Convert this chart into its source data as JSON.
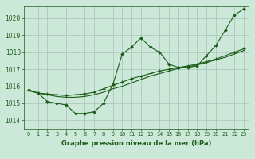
{
  "bg_color": "#cce8d8",
  "grid_color": "#aabfb5",
  "line_color": "#1a5c1a",
  "xlabel": "Graphe pression niveau de la mer (hPa)",
  "ylim": [
    1013.5,
    1020.7
  ],
  "xlim": [
    -0.5,
    23.5
  ],
  "yticks": [
    1014,
    1015,
    1016,
    1017,
    1018,
    1019,
    1020
  ],
  "xticks": [
    0,
    1,
    2,
    3,
    4,
    5,
    6,
    7,
    8,
    9,
    10,
    11,
    12,
    13,
    14,
    15,
    16,
    17,
    18,
    19,
    20,
    21,
    22,
    23
  ],
  "series1_y": [
    1015.8,
    1015.6,
    1015.1,
    1015.0,
    1014.9,
    1014.4,
    1014.4,
    1014.5,
    1015.0,
    1016.1,
    1017.9,
    1018.3,
    1018.85,
    1018.3,
    1018.0,
    1017.3,
    1017.1,
    1017.1,
    1017.2,
    1017.8,
    1018.4,
    1019.3,
    1020.2,
    1020.55
  ],
  "series2_y": [
    1015.75,
    1015.6,
    1015.55,
    1015.5,
    1015.45,
    1015.5,
    1015.55,
    1015.65,
    1015.85,
    1016.05,
    1016.25,
    1016.45,
    1016.6,
    1016.75,
    1016.9,
    1017.0,
    1017.1,
    1017.2,
    1017.3,
    1017.45,
    1017.6,
    1017.8,
    1018.0,
    1018.2
  ],
  "series3_y": [
    1015.75,
    1015.6,
    1015.5,
    1015.4,
    1015.35,
    1015.35,
    1015.4,
    1015.5,
    1015.65,
    1015.85,
    1016.0,
    1016.2,
    1016.4,
    1016.6,
    1016.75,
    1016.9,
    1017.05,
    1017.15,
    1017.25,
    1017.4,
    1017.55,
    1017.7,
    1017.9,
    1018.1
  ]
}
